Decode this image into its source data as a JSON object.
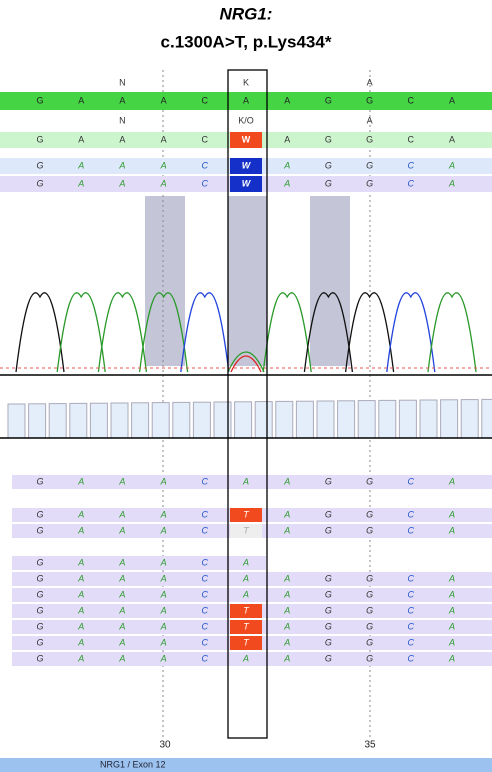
{
  "header": {
    "gene": "NRG1:",
    "variant": "c.1300A>T, p.Lys434*"
  },
  "annotations": [
    [
      null,
      null,
      "N",
      null,
      null,
      "K",
      null,
      null,
      "A",
      null,
      null
    ],
    [
      null,
      null,
      "N",
      null,
      null,
      "K/O",
      null,
      null,
      "A",
      null,
      null
    ]
  ],
  "reference": [
    "G",
    "A",
    "A",
    "A",
    "C",
    "A",
    "A",
    "G",
    "G",
    "C",
    "A"
  ],
  "consensus": [
    [
      "G",
      "A",
      "A",
      "A",
      "C",
      "W",
      "A",
      "G",
      "G",
      "C",
      "A"
    ],
    [
      "G",
      "A",
      "A",
      "A",
      "C",
      "W",
      "A",
      "G",
      "G",
      "C",
      "A"
    ],
    [
      "G",
      "A",
      "A",
      "A",
      "C",
      "W",
      "A",
      "G",
      "G",
      "C",
      "A"
    ]
  ],
  "reads": [
    [
      "G",
      "A",
      "A",
      "A",
      "C",
      "A",
      "A",
      "G",
      "G",
      "C",
      "A"
    ],
    [
      "G",
      "A",
      "A",
      "A",
      "C",
      "T",
      "A",
      "G",
      "G",
      "C",
      "A"
    ],
    [
      "G",
      "A",
      "A",
      "A",
      "C",
      "T",
      "A",
      "G",
      "G",
      "C",
      "A"
    ],
    [
      "G",
      "A",
      "A",
      "A",
      "C",
      "A",
      null,
      null,
      null,
      null,
      null
    ],
    [
      "G",
      "A",
      "A",
      "A",
      "C",
      "A",
      "A",
      "G",
      "G",
      "C",
      "A"
    ],
    [
      "G",
      "A",
      "A",
      "A",
      "C",
      "A",
      "A",
      "G",
      "G",
      "C",
      "A"
    ],
    [
      "G",
      "A",
      "A",
      "A",
      "C",
      "T",
      "A",
      "G",
      "G",
      "C",
      "A"
    ],
    [
      "G",
      "A",
      "A",
      "A",
      "C",
      "T",
      "A",
      "G",
      "G",
      "C",
      "A"
    ],
    [
      "G",
      "A",
      "A",
      "A",
      "C",
      "T",
      "A",
      "G",
      "G",
      "C",
      "A"
    ],
    [
      "G",
      "A",
      "A",
      "A",
      "C",
      "A",
      "A",
      "G",
      "G",
      "C",
      "A"
    ]
  ],
  "ruler": [
    "30",
    "35"
  ],
  "footer": "NRG1 / Exon 12"
}
